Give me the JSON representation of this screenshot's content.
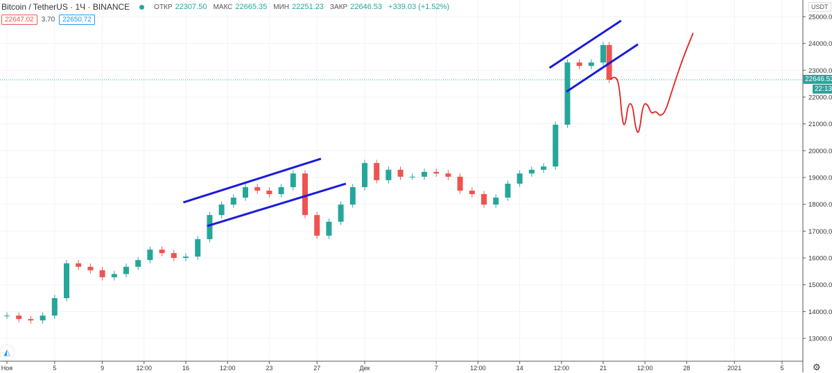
{
  "header": {
    "symbol": "Bitcoin / TetherUS · 1Ч · BINANCE",
    "open_label": "ОТКР",
    "open": "22307.50",
    "high_label": "МАКС",
    "high": "22665.35",
    "low_label": "МИН",
    "low": "22251.23",
    "close_label": "ЗАКР",
    "close": "22646.53",
    "change": "+339.03 (+1.52%)",
    "bid": "22647.02",
    "spread": "3.70",
    "ask": "22650.72"
  },
  "axis": {
    "currency": "USDT",
    "last_price": "22646.53",
    "countdown": "22:13"
  },
  "colors": {
    "up": "#26a69a",
    "down": "#ef5350",
    "channel": "#1a1adb",
    "forecast": "#e61e1e",
    "bid": "#ef5350",
    "ask": "#2196f3"
  },
  "icons": {
    "logo": "tradingview-logo-icon",
    "settings": "gear-icon"
  },
  "chart_data": {
    "type": "candlestick",
    "ylim": [
      12500,
      25500
    ],
    "y_ticks": [
      25000,
      24000,
      23000,
      22000,
      21000,
      20000,
      19000,
      18000,
      17000,
      16000,
      15000,
      14000,
      13000
    ],
    "x_ticks": [
      [
        "2020-11-01T00:00",
        "Ноя"
      ],
      [
        "2020-11-05T00:00",
        "5"
      ],
      [
        "2020-11-09T00:00",
        "9"
      ],
      [
        "2020-11-12T12:00",
        "12:00"
      ],
      [
        "2020-11-16T00:00",
        "16"
      ],
      [
        "2020-11-19T12:00",
        "12:00"
      ],
      [
        "2020-11-23T00:00",
        "23"
      ],
      [
        "2020-11-27T00:00",
        "27"
      ],
      [
        "2020-12-01T00:00",
        "Дек"
      ],
      [
        "2020-12-07T00:00",
        "7"
      ],
      [
        "2020-12-10T12:00",
        "12:00"
      ],
      [
        "2020-12-14T00:00",
        "14"
      ],
      [
        "2020-12-17T12:00",
        "12:00"
      ],
      [
        "2020-12-21T00:00",
        "21"
      ],
      [
        "2020-12-24T12:00",
        "12:00"
      ],
      [
        "2020-12-28T00:00",
        "28"
      ],
      [
        "2021-01-01T00:00",
        "2021"
      ],
      [
        "2021-01-05T00:00",
        "5"
      ]
    ],
    "closes": [
      [
        "2020-11-01",
        13850
      ],
      [
        "2020-11-02",
        13720
      ],
      [
        "2020-11-03",
        13670
      ],
      [
        "2020-11-04",
        13850
      ],
      [
        "2020-11-05",
        14500
      ],
      [
        "2020-11-06",
        15800
      ],
      [
        "2020-11-07",
        15670
      ],
      [
        "2020-11-08",
        15540
      ],
      [
        "2020-11-09",
        15280
      ],
      [
        "2020-11-10",
        15400
      ],
      [
        "2020-11-11",
        15670
      ],
      [
        "2020-11-12",
        15920
      ],
      [
        "2020-11-13",
        16310
      ],
      [
        "2020-11-14",
        16180
      ],
      [
        "2020-11-15",
        16000
      ],
      [
        "2020-11-16",
        16050
      ],
      [
        "2020-11-17",
        16700
      ],
      [
        "2020-11-18",
        17600
      ],
      [
        "2020-11-19",
        17990
      ],
      [
        "2020-11-20",
        18250
      ],
      [
        "2020-11-21",
        18640
      ],
      [
        "2020-11-22",
        18510
      ],
      [
        "2020-11-23",
        18380
      ],
      [
        "2020-11-24",
        18640
      ],
      [
        "2020-11-25",
        19150
      ],
      [
        "2020-11-26",
        17600
      ],
      [
        "2020-11-27",
        16830
      ],
      [
        "2020-11-28",
        17350
      ],
      [
        "2020-11-29",
        17990
      ],
      [
        "2020-11-30",
        18640
      ],
      [
        "2020-12-01",
        19540
      ],
      [
        "2020-12-02",
        18900
      ],
      [
        "2020-12-03",
        19290
      ],
      [
        "2020-12-04",
        19030
      ],
      [
        "2020-12-05",
        19030
      ],
      [
        "2020-12-06",
        19210
      ],
      [
        "2020-12-07",
        19150
      ],
      [
        "2020-12-08",
        19030
      ],
      [
        "2020-12-09",
        18510
      ],
      [
        "2020-12-10",
        18380
      ],
      [
        "2020-12-11",
        17990
      ],
      [
        "2020-12-12",
        18250
      ],
      [
        "2020-12-13",
        18770
      ],
      [
        "2020-12-14",
        19150
      ],
      [
        "2020-12-15",
        19290
      ],
      [
        "2020-12-16",
        19410
      ],
      [
        "2020-12-17",
        20970
      ],
      [
        "2020-12-18",
        23290
      ],
      [
        "2020-12-19",
        23160
      ],
      [
        "2020-12-20",
        23290
      ],
      [
        "2020-12-21",
        23940
      ],
      [
        "2020-12-21T12:00",
        22646.53
      ]
    ],
    "trendlines": [
      [
        [
          "2020-11-15T19:00",
          18070
        ],
        [
          "2020-11-27T08:00",
          19700
        ]
      ],
      [
        [
          "2020-11-17T19:00",
          17190
        ],
        [
          "2020-11-29T10:00",
          18770
        ]
      ],
      [
        [
          "2020-12-16T12:00",
          23090
        ],
        [
          "2020-12-22T12:00",
          24850
        ]
      ],
      [
        [
          "2020-12-17T22:00",
          22200
        ],
        [
          "2020-12-23T22:00",
          23970
        ]
      ]
    ],
    "forecast_path": [
      [
        "2020-12-21T14:00",
        22650
      ],
      [
        "2020-12-22T00:00",
        22780
      ],
      [
        "2020-12-22T08:00",
        22520
      ],
      [
        "2020-12-22T15:00",
        20970
      ],
      [
        "2020-12-22T21:00",
        20970
      ],
      [
        "2020-12-23T02:00",
        21750
      ],
      [
        "2020-12-23T11:00",
        21750
      ],
      [
        "2020-12-23T17:00",
        20840
      ],
      [
        "2020-12-24T00:00",
        20580
      ],
      [
        "2020-12-24T08:00",
        21750
      ],
      [
        "2020-12-24T17:00",
        21750
      ],
      [
        "2020-12-25T01:00",
        21360
      ],
      [
        "2020-12-25T10:00",
        21490
      ],
      [
        "2020-12-25T18:00",
        21280
      ],
      [
        "2020-12-26T05:00",
        21440
      ],
      [
        "2020-12-26T19:00",
        22270
      ],
      [
        "2020-12-27T16:00",
        23430
      ],
      [
        "2020-12-28T13:00",
        24390
      ]
    ]
  }
}
